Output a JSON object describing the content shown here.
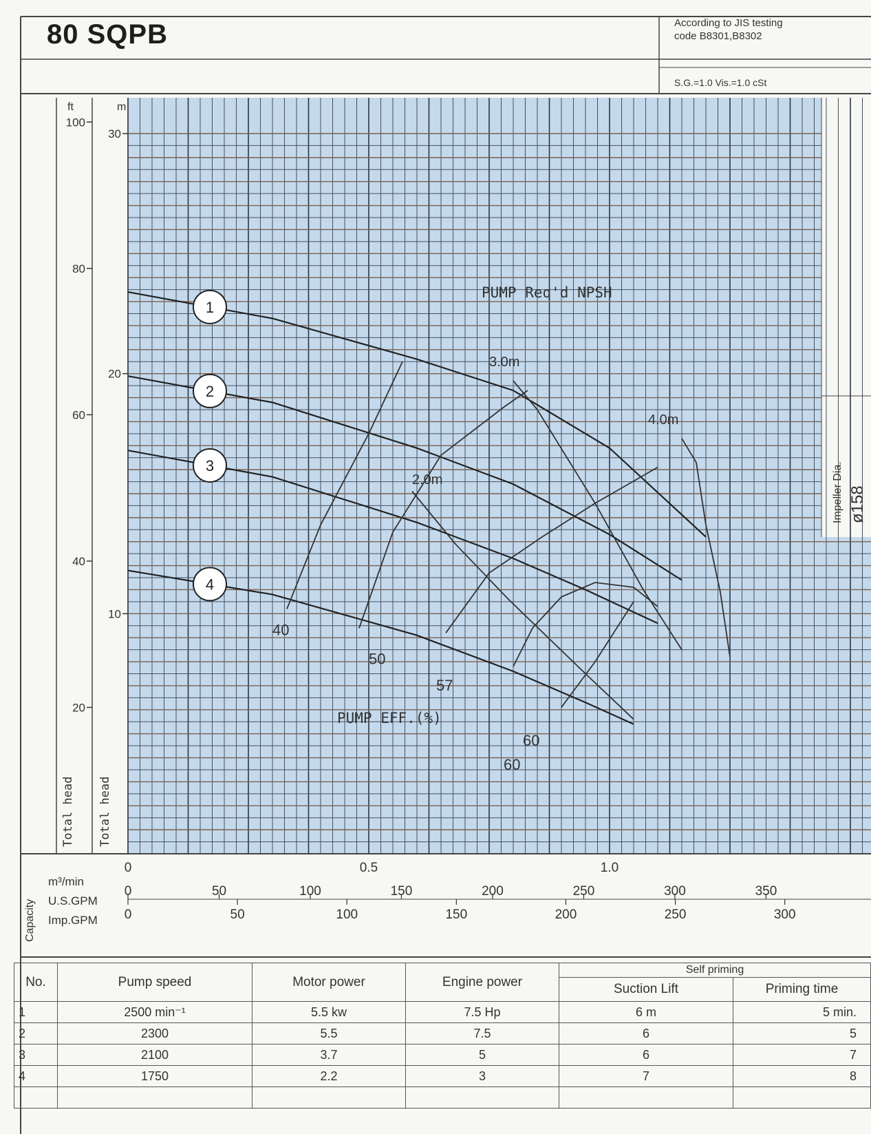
{
  "model": "80 SQPB",
  "standard": {
    "line1": "According to JIS testing",
    "line2": "code B8301,B8302",
    "conditions": "S.G.=1.0 Vis.=1.0 cSt"
  },
  "impeller_label": "Impeller Dia.",
  "impeller_value": "ø158",
  "capacity_label": "Capacity",
  "axis_units": {
    "m3": "m³/min",
    "usgpm": "U.S.GPM",
    "impgpm": "Imp.GPM",
    "ft": "ft",
    "m": "m"
  },
  "axis_labels": {
    "total_head_ft": "Total head",
    "total_head_m": "Total head"
  },
  "annotations": {
    "npsh": "PUMP Req'd NPSH",
    "eff": "PUMP EFF.(%)"
  },
  "chart_data": {
    "type": "line",
    "x_unit": "m³/min",
    "y_unit": "m",
    "xlim": [
      0,
      1.3
    ],
    "ylim": [
      0,
      30
    ],
    "grid": true,
    "m3_ticks": [
      "0",
      "0.5",
      "1.0"
    ],
    "usgpm_ticks": [
      "0",
      "50",
      "100",
      "150",
      "200",
      "250",
      "300",
      "350"
    ],
    "impgpm_ticks": [
      "0",
      "50",
      "100",
      "150",
      "200",
      "250",
      "300"
    ],
    "ft_ticks": [
      "100",
      "80",
      "60",
      "40",
      "20"
    ],
    "m_ticks": [
      "30",
      "20",
      "10"
    ],
    "series": [
      {
        "name": "1",
        "x": [
          0.0,
          0.3,
          0.6,
          0.8,
          1.0,
          1.2
        ],
        "y": [
          23.4,
          22.3,
          20.6,
          19.3,
          16.9,
          13.2
        ]
      },
      {
        "name": "2",
        "x": [
          0.0,
          0.3,
          0.6,
          0.8,
          1.0,
          1.15
        ],
        "y": [
          19.9,
          18.8,
          16.9,
          15.4,
          13.3,
          11.4
        ]
      },
      {
        "name": "3",
        "x": [
          0.0,
          0.3,
          0.6,
          0.8,
          0.95,
          1.1
        ],
        "y": [
          16.8,
          15.7,
          13.8,
          12.3,
          11.0,
          9.6
        ]
      },
      {
        "name": "4",
        "x": [
          0.0,
          0.3,
          0.6,
          0.8,
          0.95,
          1.05
        ],
        "y": [
          11.8,
          10.8,
          9.1,
          7.6,
          6.3,
          5.4
        ]
      }
    ],
    "efficiency_contours": [
      {
        "label": "40",
        "x": [
          0.33,
          0.4,
          0.5,
          0.57
        ],
        "y": [
          10.2,
          13.7,
          17.5,
          20.5
        ]
      },
      {
        "label": "50",
        "x": [
          0.48,
          0.55,
          0.65,
          0.78,
          0.83
        ],
        "y": [
          9.4,
          13.4,
          16.6,
          18.6,
          19.3
        ]
      },
      {
        "label": "57",
        "x": [
          0.66,
          0.75,
          0.86,
          0.97,
          1.1
        ],
        "y": [
          9.2,
          11.7,
          13.2,
          14.6,
          16.1
        ]
      },
      {
        "label": "60",
        "x": [
          0.8,
          0.84,
          0.9,
          0.97,
          1.05,
          1.1
        ],
        "y": [
          7.8,
          9.4,
          10.7,
          11.3,
          11.1,
          10.3
        ]
      },
      {
        "label": "60",
        "x": [
          0.9,
          0.97,
          1.05
        ],
        "y": [
          6.1,
          8.0,
          10.5
        ]
      }
    ],
    "npsh_curves": [
      {
        "label": "2.0m",
        "x": [
          0.59,
          0.68,
          0.79,
          0.95,
          1.05
        ],
        "y": [
          15.1,
          12.9,
          10.6,
          7.5,
          5.6
        ]
      },
      {
        "label": "3.0m",
        "x": [
          0.8,
          0.85,
          0.97,
          1.07,
          1.15
        ],
        "y": [
          19.7,
          18.5,
          14.6,
          11.0,
          8.5
        ]
      },
      {
        "label": "4.0m",
        "x": [
          1.15,
          1.18,
          1.2,
          1.23,
          1.25
        ],
        "y": [
          17.3,
          16.3,
          13.7,
          10.9,
          8.2
        ]
      }
    ]
  },
  "table": {
    "headers": {
      "no": "No.",
      "speed": "Pump speed",
      "motor": "Motor power",
      "engine": "Engine power",
      "self_priming": "Self priming",
      "suction": "Suction Lift",
      "priming": "Priming time"
    },
    "rows": [
      {
        "no": "1",
        "speed": "2500 min⁻¹",
        "motor": "5.5 kw",
        "engine": "7.5 Hp",
        "suction": "6 m",
        "priming": "5 min."
      },
      {
        "no": "2",
        "speed": "2300",
        "motor": "5.5",
        "engine": "7.5",
        "suction": "6",
        "priming": "5"
      },
      {
        "no": "3",
        "speed": "2100",
        "motor": "3.7",
        "engine": "5",
        "suction": "6",
        "priming": "7"
      },
      {
        "no": "4",
        "speed": "1750",
        "motor": "2.2",
        "engine": "3",
        "suction": "7",
        "priming": "8"
      }
    ]
  }
}
